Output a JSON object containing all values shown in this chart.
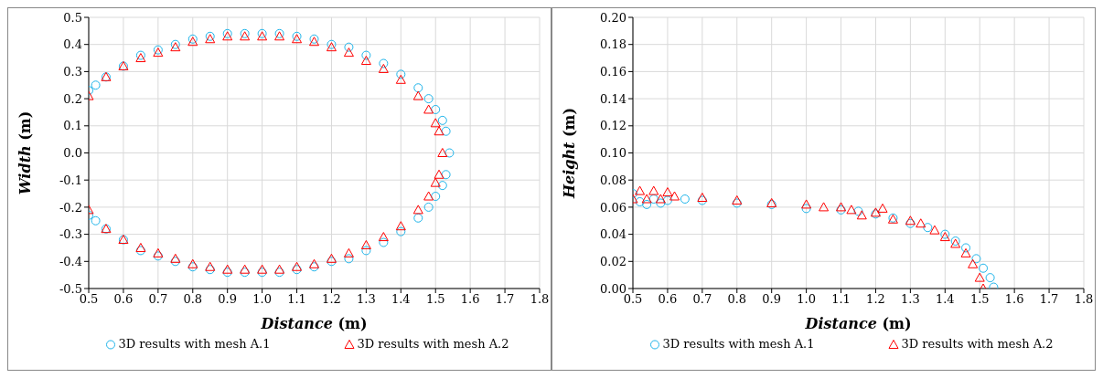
{
  "chart_data": [
    {
      "type": "scatter",
      "xlabel": "Distance (m)",
      "ylabel": "Width (m)",
      "xlim": [
        0.5,
        1.8
      ],
      "xticks": [
        0.5,
        0.6,
        0.7,
        0.8,
        0.9,
        {
          "value": 1.0,
          "label": "1.0"
        },
        1.1,
        1.2,
        1.3,
        1.4,
        1.5,
        1.6,
        1.7,
        1.8
      ],
      "ylim": [
        -0.5,
        0.5
      ],
      "yticks": [
        -0.5,
        -0.4,
        -0.3,
        -0.2,
        -0.1,
        {
          "value": 0,
          "label": "0.0"
        },
        0.1,
        0.2,
        0.3,
        0.4,
        0.5
      ],
      "grid": true,
      "legend": "bottom",
      "series": [
        {
          "name": "3D results with mesh A.1",
          "color": "#1eb4ea",
          "marker": "circle",
          "x": [
            0.5,
            0.52,
            0.55,
            0.6,
            0.65,
            0.7,
            0.75,
            0.8,
            0.85,
            0.9,
            0.95,
            1.0,
            1.05,
            1.1,
            1.15,
            1.2,
            1.25,
            1.3,
            1.35,
            1.4,
            1.45,
            1.48,
            1.5,
            1.52,
            1.53,
            1.54,
            1.53,
            1.52,
            1.5,
            1.48,
            1.45,
            1.4,
            1.35,
            1.3,
            1.25,
            1.2,
            1.15,
            1.1,
            1.05,
            1.0,
            0.95,
            0.9,
            0.85,
            0.8,
            0.75,
            0.7,
            0.65,
            0.6,
            0.55,
            0.52,
            0.5
          ],
          "values": [
            0.23,
            0.25,
            0.28,
            0.32,
            0.36,
            0.38,
            0.4,
            0.42,
            0.43,
            0.44,
            0.44,
            0.44,
            0.44,
            0.43,
            0.42,
            0.4,
            0.39,
            0.36,
            0.33,
            0.29,
            0.24,
            0.2,
            0.16,
            0.12,
            0.08,
            0,
            -0.08,
            -0.12,
            -0.16,
            -0.2,
            -0.24,
            -0.29,
            -0.33,
            -0.36,
            -0.39,
            -0.4,
            -0.42,
            -0.43,
            -0.44,
            -0.44,
            -0.44,
            -0.44,
            -0.43,
            -0.42,
            -0.4,
            -0.38,
            -0.36,
            -0.32,
            -0.28,
            -0.25,
            -0.23
          ]
        },
        {
          "name": "3D results with mesh A.2",
          "color": "#ff0000",
          "marker": "triangle",
          "x": [
            0.5,
            0.55,
            0.6,
            0.65,
            0.7,
            0.75,
            0.8,
            0.85,
            0.9,
            0.95,
            1.0,
            1.05,
            1.1,
            1.15,
            1.2,
            1.25,
            1.3,
            1.35,
            1.4,
            1.45,
            1.48,
            1.5,
            1.51,
            1.52,
            1.51,
            1.5,
            1.48,
            1.45,
            1.4,
            1.35,
            1.3,
            1.25,
            1.2,
            1.15,
            1.1,
            1.05,
            1.0,
            0.95,
            0.9,
            0.85,
            0.8,
            0.75,
            0.7,
            0.65,
            0.6,
            0.55,
            0.5
          ],
          "values": [
            0.21,
            0.28,
            0.32,
            0.35,
            0.37,
            0.39,
            0.41,
            0.42,
            0.43,
            0.43,
            0.43,
            0.43,
            0.42,
            0.41,
            0.39,
            0.37,
            0.34,
            0.31,
            0.27,
            0.21,
            0.16,
            0.11,
            0.08,
            0,
            -0.08,
            -0.11,
            -0.16,
            -0.21,
            -0.27,
            -0.31,
            -0.34,
            -0.37,
            -0.39,
            -0.41,
            -0.42,
            -0.43,
            -0.43,
            -0.43,
            -0.43,
            -0.42,
            -0.41,
            -0.39,
            -0.37,
            -0.35,
            -0.32,
            -0.28,
            -0.21
          ]
        }
      ]
    },
    {
      "type": "scatter",
      "xlabel": "Distance (m)",
      "ylabel": "Height (m)",
      "xlim": [
        0.5,
        1.8
      ],
      "xticks": [
        0.5,
        0.6,
        0.7,
        0.8,
        0.9,
        {
          "value": 1.0,
          "label": "1.0"
        },
        1.1,
        1.2,
        1.3,
        1.4,
        1.5,
        1.6,
        1.7,
        1.8
      ],
      "ylim": [
        0,
        0.2
      ],
      "yticks": [
        {
          "value": 0,
          "label": "0.00"
        },
        0.02,
        0.04,
        0.06,
        0.08,
        {
          "value": 0.1,
          "label": "0.10"
        },
        0.12,
        0.14,
        0.16,
        0.18,
        {
          "value": 0.2,
          "label": "0.20"
        }
      ],
      "grid": true,
      "legend": "bottom",
      "series": [
        {
          "name": "3D results with mesh A.1",
          "color": "#1eb4ea",
          "marker": "circle",
          "x": [
            0.5,
            0.52,
            0.54,
            0.56,
            0.58,
            0.6,
            0.65,
            0.7,
            0.8,
            0.9,
            1.0,
            1.1,
            1.15,
            1.2,
            1.25,
            1.3,
            1.35,
            1.4,
            1.43,
            1.46,
            1.49,
            1.51,
            1.53,
            1.54
          ],
          "values": [
            0.07,
            0.064,
            0.062,
            0.066,
            0.063,
            0.065,
            0.066,
            0.065,
            0.063,
            0.062,
            0.059,
            0.058,
            0.057,
            0.055,
            0.052,
            0.048,
            0.045,
            0.04,
            0.035,
            0.03,
            0.022,
            0.015,
            0.008,
            0.001
          ]
        },
        {
          "name": "3D results with mesh A.2",
          "color": "#ff0000",
          "marker": "triangle",
          "x": [
            0.5,
            0.52,
            0.54,
            0.56,
            0.58,
            0.6,
            0.62,
            0.7,
            0.8,
            0.9,
            1.0,
            1.05,
            1.1,
            1.13,
            1.16,
            1.2,
            1.22,
            1.25,
            1.3,
            1.33,
            1.37,
            1.4,
            1.43,
            1.46,
            1.48,
            1.5,
            1.51
          ],
          "values": [
            0.066,
            0.072,
            0.066,
            0.072,
            0.066,
            0.071,
            0.068,
            0.067,
            0.065,
            0.063,
            0.062,
            0.06,
            0.06,
            0.058,
            0.054,
            0.056,
            0.059,
            0.051,
            0.05,
            0.048,
            0.043,
            0.038,
            0.033,
            0.026,
            0.018,
            0.008,
            0
          ]
        }
      ]
    }
  ]
}
